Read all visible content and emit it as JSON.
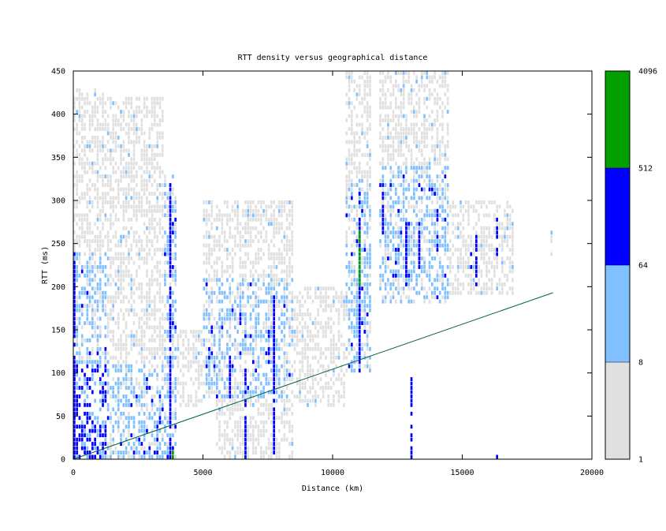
{
  "chart_data": {
    "type": "heatmap",
    "title": "RTT density versus geographical distance",
    "xlabel": "Distance (km)",
    "ylabel": "RTT (ms)",
    "xlim": [
      0,
      20000
    ],
    "ylim": [
      0,
      450
    ],
    "xticks": [
      0,
      5000,
      10000,
      15000,
      20000
    ],
    "yticks": [
      0,
      50,
      100,
      150,
      200,
      250,
      300,
      350,
      400,
      450
    ],
    "cell_size": {
      "distance_km": 100,
      "rtt_ms": 5
    },
    "colorbar": {
      "scale": "log2",
      "tick_labels": [
        "1",
        "8",
        "64",
        "512",
        "4096"
      ],
      "bins": [
        {
          "from": 1,
          "to": 8,
          "color": "#e0e0e0"
        },
        {
          "from": 8,
          "to": 64,
          "color": "#80c0ff"
        },
        {
          "from": 64,
          "to": 512,
          "color": "#0000ff"
        },
        {
          "from": 512,
          "to": 4096,
          "color": "#00a000"
        }
      ]
    },
    "density_regions": [
      {
        "x": [
          0,
          1300
        ],
        "y": [
          0,
          110
        ],
        "level": 3
      },
      {
        "x": [
          0,
          1300
        ],
        "y": [
          110,
          240
        ],
        "level": 2
      },
      {
        "x": [
          0,
          1300
        ],
        "y": [
          240,
          430
        ],
        "level": 1
      },
      {
        "x": [
          1300,
          3500
        ],
        "y": [
          0,
          110
        ],
        "level": 2
      },
      {
        "x": [
          1300,
          3500
        ],
        "y": [
          110,
          200
        ],
        "level": 1
      },
      {
        "x": [
          1300,
          3500
        ],
        "y": [
          200,
          420
        ],
        "level": 1
      },
      {
        "x": [
          3500,
          4000
        ],
        "y": [
          0,
          180
        ],
        "level": 2
      },
      {
        "x": [
          3500,
          4000
        ],
        "y": [
          180,
          330
        ],
        "level": 2
      },
      {
        "x": [
          4000,
          5000
        ],
        "y": [
          60,
          150
        ],
        "level": 1
      },
      {
        "x": [
          5000,
          8500
        ],
        "y": [
          70,
          210
        ],
        "level": 2
      },
      {
        "x": [
          5500,
          8500
        ],
        "y": [
          0,
          70
        ],
        "level": 1
      },
      {
        "x": [
          5000,
          8500
        ],
        "y": [
          210,
          300
        ],
        "level": 1
      },
      {
        "x": [
          8500,
          10500
        ],
        "y": [
          60,
          200
        ],
        "level": 1
      },
      {
        "x": [
          10500,
          11500
        ],
        "y": [
          100,
          320
        ],
        "level": 2
      },
      {
        "x": [
          10500,
          11500
        ],
        "y": [
          320,
          450
        ],
        "level": 1
      },
      {
        "x": [
          11800,
          14500
        ],
        "y": [
          180,
          340
        ],
        "level": 2
      },
      {
        "x": [
          11800,
          14500
        ],
        "y": [
          340,
          450
        ],
        "level": 1
      },
      {
        "x": [
          14500,
          17000
        ],
        "y": [
          190,
          300
        ],
        "level": 1
      },
      {
        "x": [
          18400,
          18500
        ],
        "y": [
          230,
          270
        ],
        "level": 1
      }
    ],
    "dense_columns": [
      {
        "x": 0,
        "y": [
          0,
          230
        ],
        "level": 3
      },
      {
        "x": 3700,
        "y": [
          0,
          320
        ],
        "level": 3
      },
      {
        "x": 3800,
        "y": [
          0,
          10
        ],
        "level": 4
      },
      {
        "x": 6000,
        "y": [
          70,
          120
        ],
        "level": 3
      },
      {
        "x": 6600,
        "y": [
          0,
          110
        ],
        "level": 3
      },
      {
        "x": 7500,
        "y": [
          110,
          150
        ],
        "level": 3
      },
      {
        "x": 7700,
        "y": [
          0,
          190
        ],
        "level": 3
      },
      {
        "x": 11000,
        "y": [
          100,
          310
        ],
        "level": 3
      },
      {
        "x": 11000,
        "y": [
          200,
          270
        ],
        "level": 4
      },
      {
        "x": 11900,
        "y": [
          260,
          320
        ],
        "level": 3
      },
      {
        "x": 12800,
        "y": [
          200,
          280
        ],
        "level": 3
      },
      {
        "x": 13000,
        "y": [
          0,
          100
        ],
        "level": 3
      },
      {
        "x": 13300,
        "y": [
          220,
          280
        ],
        "level": 3
      },
      {
        "x": 14000,
        "y": [
          240,
          290
        ],
        "level": 3
      },
      {
        "x": 15300,
        "y": [
          220,
          250
        ],
        "level": 3
      },
      {
        "x": 15500,
        "y": [
          200,
          260
        ],
        "level": 3
      },
      {
        "x": 16300,
        "y": [
          0,
          5
        ],
        "level": 3
      },
      {
        "x": 16300,
        "y": [
          230,
          280
        ],
        "level": 3
      }
    ],
    "reference_line": {
      "color": "#006040",
      "points": [
        [
          0,
          0
        ],
        [
          18500,
          193
        ]
      ]
    }
  }
}
